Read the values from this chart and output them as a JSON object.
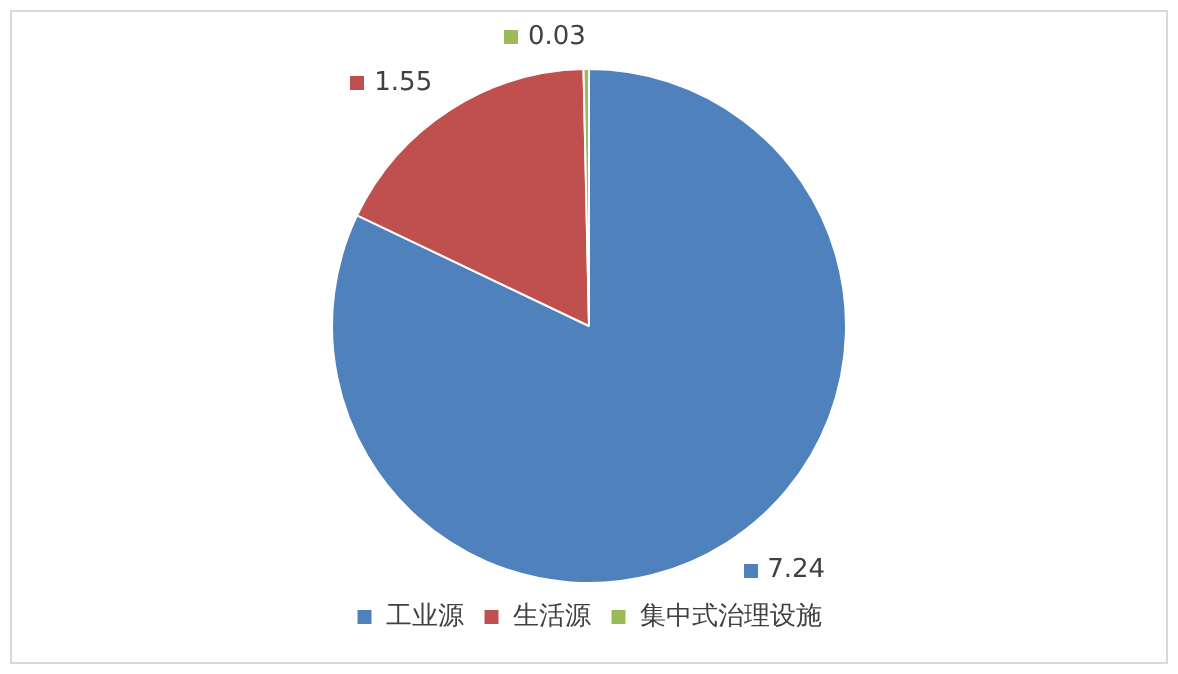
{
  "chart_data": {
    "type": "pie",
    "categories": [
      "工业源",
      "生活源",
      "集中式治理设施"
    ],
    "values": [
      7.24,
      1.55,
      0.03
    ],
    "colors": [
      "#4f81bd",
      "#c0504d",
      "#9bbb59"
    ],
    "data_labels": true,
    "legend": "bottom"
  }
}
